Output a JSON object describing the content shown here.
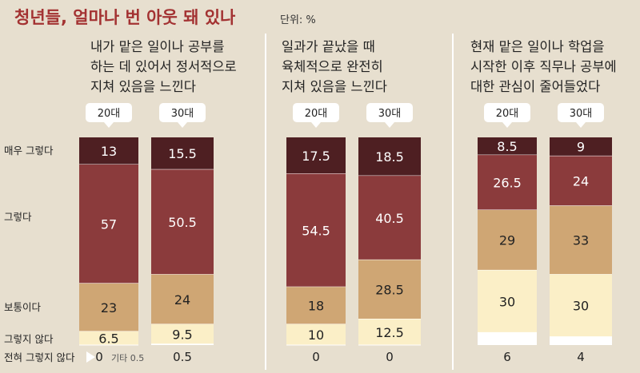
{
  "header": {
    "title": "청년들, 얼마나 번 아웃 돼 있나",
    "unit": "단위: %"
  },
  "legend_rows": [
    {
      "label": "매우 그렇다",
      "color": "#4e1f22"
    },
    {
      "label": "그렇다",
      "color": "#8b3b3c"
    },
    {
      "label": "보통이다",
      "color": "#cfa674"
    },
    {
      "label": "그렇지 않다",
      "color": "#fbefc7"
    },
    {
      "label": "전혀 그렇지 않다",
      "color": "#ffffff"
    }
  ],
  "colors": {
    "background": "#e7dfcf",
    "title": "#a33232",
    "text": "#222222",
    "divider": "#ffffff"
  },
  "chart_data": [
    {
      "type": "bar",
      "stacked": true,
      "title": "내가 맡은 일이나 공부를 하는 데 있어서 정서적으로 지쳐 있음을 느낀다",
      "title_lines": [
        "내가 맡은 일이나 공부를",
        "하는 데 있어서 정서적으로",
        "지쳐 있음을 느낀다"
      ],
      "categories": [
        "20대",
        "30대"
      ],
      "series": [
        {
          "name": "매우 그렇다",
          "values": [
            13,
            15.5
          ],
          "labels": [
            "13",
            "15.5"
          ]
        },
        {
          "name": "그렇다",
          "values": [
            57,
            50.5
          ],
          "labels": [
            "57",
            "50.5"
          ]
        },
        {
          "name": "보통이다",
          "values": [
            23,
            24
          ],
          "labels": [
            "23",
            "24"
          ]
        },
        {
          "name": "그렇지 않다",
          "values": [
            6.5,
            9.5
          ],
          "labels": [
            "6.5",
            "9.5"
          ]
        },
        {
          "name": "전혀 그렇지 않다",
          "values": [
            0,
            0.5
          ],
          "labels": [
            "0",
            "0.5"
          ]
        }
      ],
      "notes": [
        "",
        "기타 0.5"
      ]
    },
    {
      "type": "bar",
      "stacked": true,
      "title": "일과가 끝났을 때 육체적으로 완전히 지쳐 있음을 느낀다",
      "title_lines": [
        "일과가 끝났을 때",
        "육체적으로 완전히",
        "지쳐 있음을 느낀다"
      ],
      "categories": [
        "20대",
        "30대"
      ],
      "series": [
        {
          "name": "매우 그렇다",
          "values": [
            17.5,
            18.5
          ],
          "labels": [
            "17.5",
            "18.5"
          ]
        },
        {
          "name": "그렇다",
          "values": [
            54.5,
            40.5
          ],
          "labels": [
            "54.5",
            "40.5"
          ]
        },
        {
          "name": "보통이다",
          "values": [
            18,
            28.5
          ],
          "labels": [
            "18",
            "28.5"
          ]
        },
        {
          "name": "그렇지 않다",
          "values": [
            10,
            12.5
          ],
          "labels": [
            "10",
            "12.5"
          ]
        },
        {
          "name": "전혀 그렇지 않다",
          "values": [
            0,
            0
          ],
          "labels": [
            "0",
            "0"
          ]
        }
      ],
      "notes": [
        "",
        ""
      ]
    },
    {
      "type": "bar",
      "stacked": true,
      "title": "현재 맡은 일이나 학업을 시작한 이후 직무나 공부에 대한 관심이 줄어들었다",
      "title_lines": [
        "현재 맡은 일이나 학업을",
        "시작한 이후 직무나 공부에",
        "대한 관심이 줄어들었다"
      ],
      "categories": [
        "20대",
        "30대"
      ],
      "series": [
        {
          "name": "매우 그렇다",
          "values": [
            8.5,
            9
          ],
          "labels": [
            "8.5",
            "9"
          ]
        },
        {
          "name": "그렇다",
          "values": [
            26.5,
            24
          ],
          "labels": [
            "26.5",
            "24"
          ]
        },
        {
          "name": "보통이다",
          "values": [
            29,
            33
          ],
          "labels": [
            "29",
            "33"
          ]
        },
        {
          "name": "그렇지 않다",
          "values": [
            30,
            30
          ],
          "labels": [
            "30",
            "30"
          ]
        },
        {
          "name": "전혀 그렇지 않다",
          "values": [
            6,
            4
          ],
          "labels": [
            "6",
            "4"
          ]
        }
      ],
      "notes": [
        "",
        ""
      ]
    }
  ]
}
